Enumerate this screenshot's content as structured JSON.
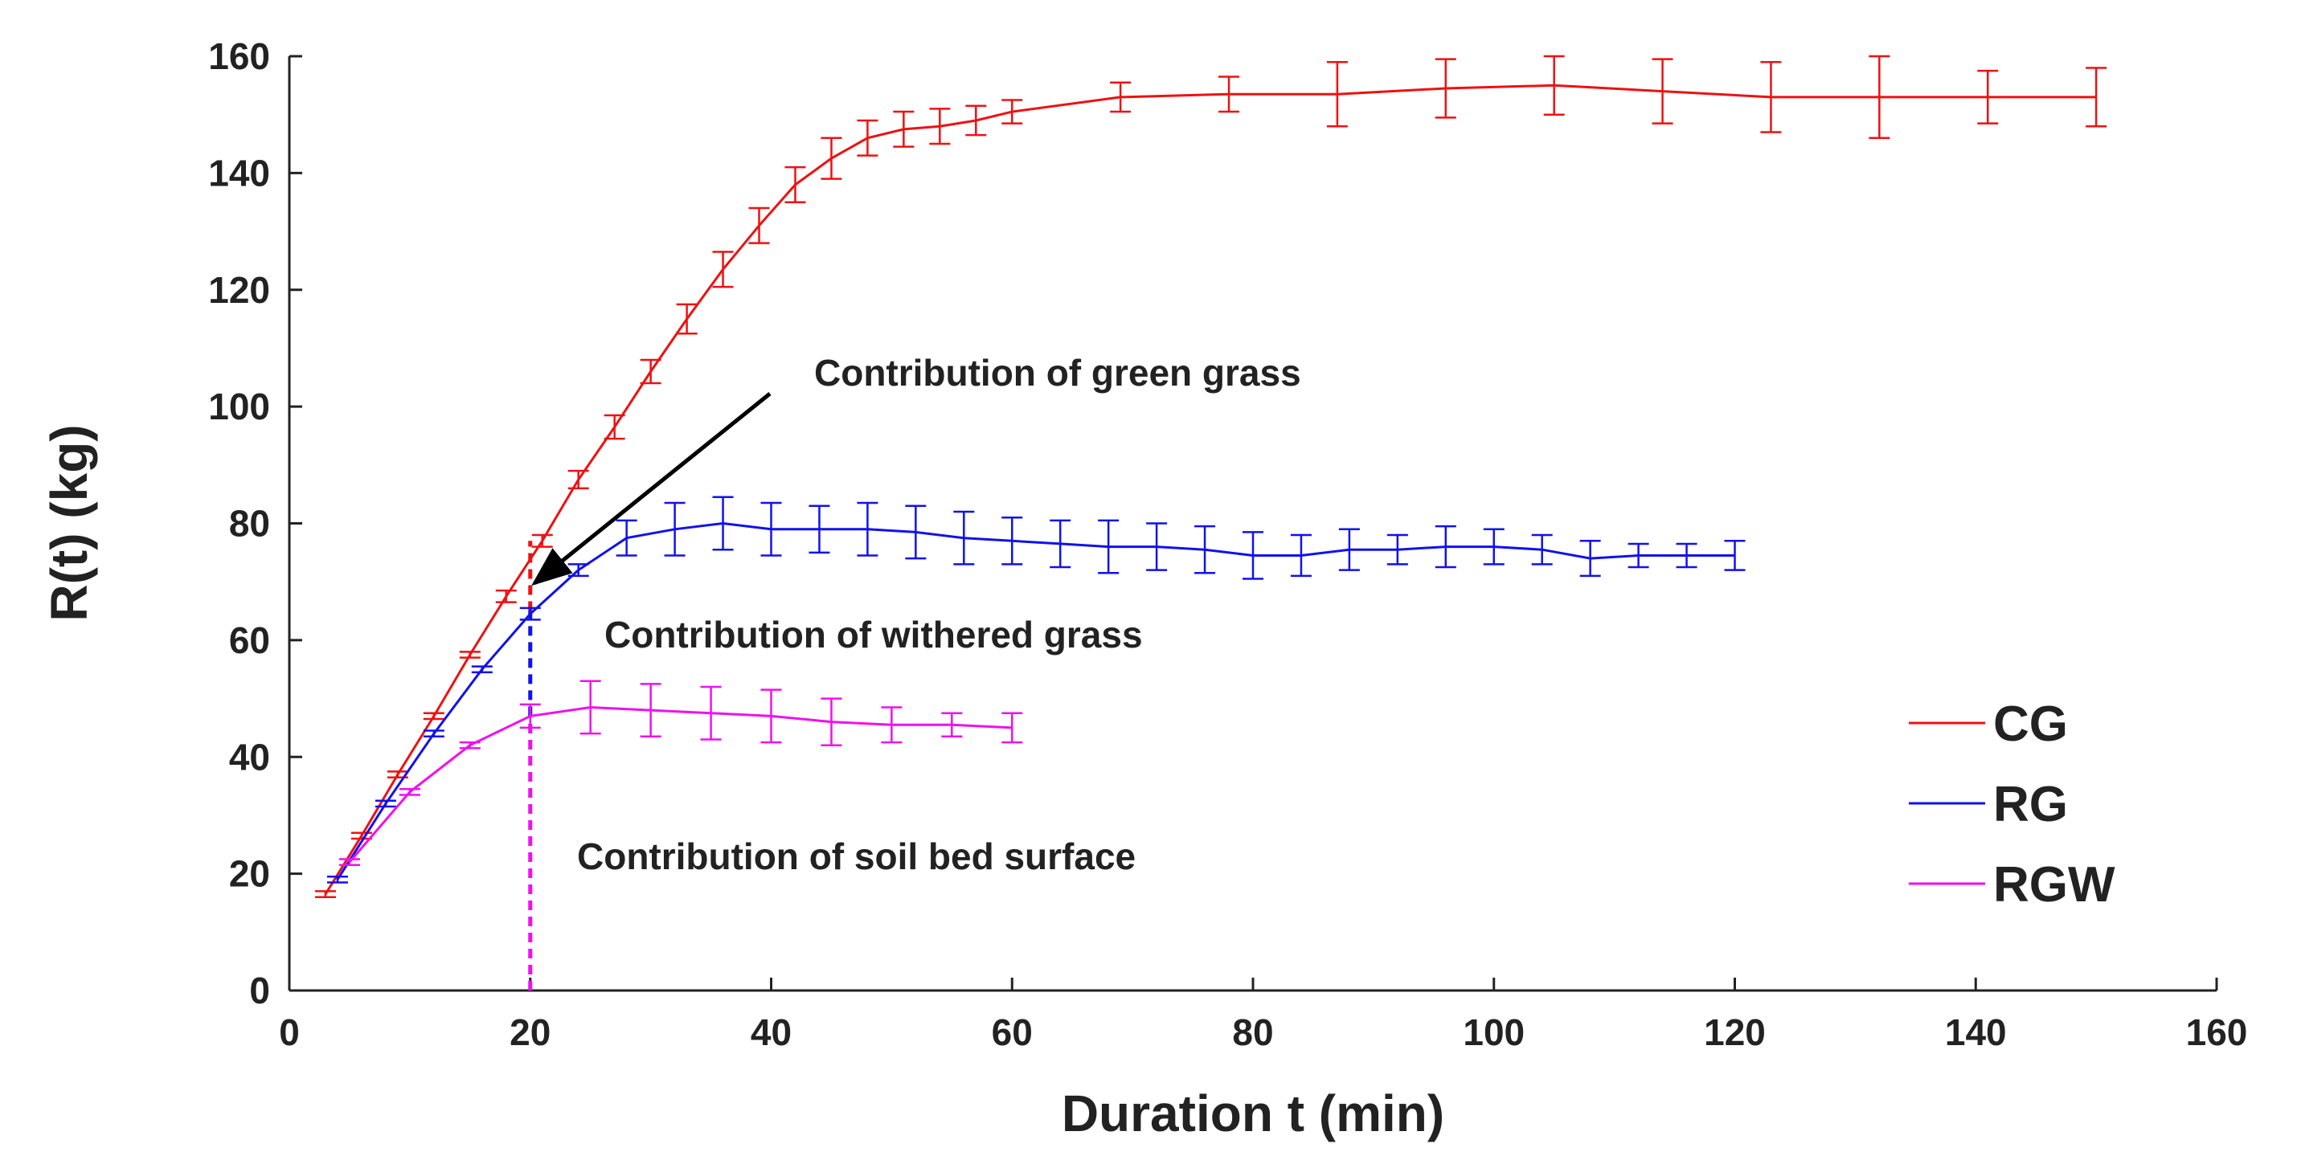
{
  "chart_data": {
    "type": "line",
    "xlabel": "Duration t (min)",
    "ylabel": "R(t) (kg)",
    "xlim": [
      0,
      160
    ],
    "ylim": [
      0,
      160
    ],
    "xticks": [
      0,
      20,
      40,
      60,
      80,
      100,
      120,
      140,
      160
    ],
    "yticks": [
      0,
      20,
      40,
      60,
      80,
      100,
      120,
      140,
      160
    ],
    "grid": false,
    "legend_position": "right",
    "series": [
      {
        "name": "CG",
        "color": "#ee1111",
        "x": [
          3,
          6,
          9,
          12,
          15,
          18,
          21,
          24,
          27,
          30,
          33,
          36,
          39,
          42,
          45,
          48,
          51,
          54,
          57,
          60,
          69,
          78,
          87,
          96,
          105,
          114,
          123,
          132,
          141,
          150
        ],
        "y": [
          16.5,
          26.5,
          37,
          47,
          57.5,
          67.5,
          77,
          87.5,
          96.5,
          106,
          115,
          123.5,
          131,
          138,
          142.5,
          146,
          147.5,
          148,
          149,
          150.5,
          153,
          153.5,
          153.5,
          154.5,
          155,
          154,
          153,
          153,
          153,
          153
        ],
        "err": [
          0.5,
          0.5,
          0.5,
          0.5,
          0.5,
          1,
          1,
          1.5,
          2,
          2,
          2.5,
          3,
          3,
          3,
          3.5,
          3,
          3,
          3,
          2.5,
          2,
          2.5,
          3,
          5.5,
          5,
          5,
          5.5,
          6,
          7,
          4.5,
          5
        ]
      },
      {
        "name": "RG",
        "color": "#1111ee",
        "x": [
          4,
          8,
          12,
          16,
          20,
          24,
          28,
          32,
          36,
          40,
          44,
          48,
          52,
          56,
          60,
          64,
          68,
          72,
          76,
          80,
          84,
          88,
          92,
          96,
          100,
          104,
          108,
          112,
          116,
          120
        ],
        "y": [
          19,
          32,
          44,
          55,
          64.5,
          72,
          77.5,
          79,
          80,
          79,
          79,
          79,
          78.5,
          77.5,
          77,
          76.5,
          76,
          76,
          75.5,
          74.5,
          74.5,
          75.5,
          75.5,
          76,
          76,
          75.5,
          74,
          74.5,
          74.5,
          74.5
        ],
        "err": [
          0.5,
          0.5,
          0.5,
          0.5,
          1,
          1,
          3,
          4.5,
          4.5,
          4.5,
          4,
          4.5,
          4.5,
          4.5,
          4,
          4,
          4.5,
          4,
          4,
          4,
          3.5,
          3.5,
          2.5,
          3.5,
          3,
          2.5,
          3,
          2,
          2,
          2.5
        ]
      },
      {
        "name": "RGW",
        "color": "#ee11ee",
        "x": [
          5,
          10,
          15,
          20,
          25,
          30,
          35,
          40,
          45,
          50,
          55,
          60
        ],
        "y": [
          22,
          34,
          42,
          47,
          48.5,
          48,
          47.5,
          47,
          46,
          45.5,
          45.5,
          45
        ],
        "err": [
          0.5,
          0.5,
          0.5,
          2,
          4.5,
          4.5,
          4.5,
          4.5,
          4,
          3,
          2,
          2.5
        ]
      }
    ],
    "annotations": [
      {
        "text": "Contribution of green grass"
      },
      {
        "text": "Contribution of withered grass"
      },
      {
        "text": "Contribution of soil bed surface"
      }
    ],
    "reference_line": {
      "x": 20,
      "y_values": [
        0,
        47,
        65,
        77
      ]
    }
  }
}
